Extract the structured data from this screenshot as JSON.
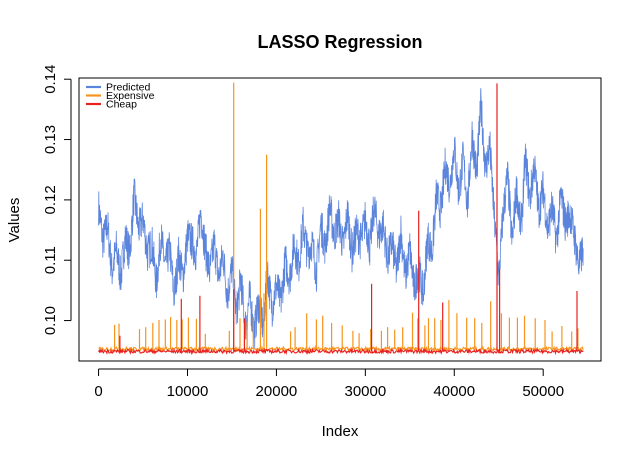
{
  "chart_data": {
    "type": "line",
    "title": "LASSO Regression",
    "xlabel": "Index",
    "ylabel": "Values",
    "xlim": [
      -2200,
      56500
    ],
    "ylim": [
      0.0933,
      0.1402
    ],
    "x_ticks": [
      0,
      10000,
      20000,
      30000,
      40000,
      50000
    ],
    "y_ticks": [
      0.1,
      0.11,
      0.12,
      0.13,
      0.14
    ],
    "y_tick_labels": [
      "0.10",
      "0.11",
      "0.12",
      "0.13",
      "0.14"
    ],
    "grid": false,
    "legend_position": "top-left",
    "series": [
      {
        "name": "Predicted",
        "color": "#5b84dc",
        "x": [
          0,
          500,
          1000,
          1500,
          2000,
          2500,
          3000,
          3500,
          4000,
          4500,
          5000,
          5500,
          6000,
          6500,
          7000,
          7500,
          8000,
          8500,
          9000,
          9500,
          10000,
          10500,
          11000,
          11500,
          12000,
          12500,
          13000,
          13500,
          14000,
          14500,
          15000,
          15500,
          16000,
          16500,
          17000,
          17500,
          18000,
          18500,
          19000,
          19500,
          20000,
          20500,
          21000,
          21500,
          22000,
          22500,
          23000,
          23500,
          24000,
          24500,
          25000,
          25500,
          26000,
          26500,
          27000,
          27500,
          28000,
          28500,
          29000,
          29500,
          30000,
          30500,
          31000,
          31500,
          32000,
          32500,
          33000,
          33500,
          34000,
          34500,
          35000,
          35500,
          36000,
          36500,
          37000,
          37500,
          38000,
          38500,
          39000,
          39500,
          40000,
          40500,
          41000,
          41500,
          42000,
          42500,
          43000,
          43500,
          44000,
          44500,
          45000,
          45500,
          46000,
          46500,
          47000,
          47500,
          48000,
          48500,
          49000,
          49500,
          50000,
          50500,
          51000,
          51500,
          52000,
          52500,
          53000,
          53500,
          54000,
          54500
        ],
        "values": [
          0.119,
          0.113,
          0.116,
          0.108,
          0.112,
          0.107,
          0.114,
          0.111,
          0.121,
          0.115,
          0.117,
          0.111,
          0.113,
          0.106,
          0.114,
          0.109,
          0.112,
          0.104,
          0.111,
          0.107,
          0.114,
          0.113,
          0.111,
          0.118,
          0.112,
          0.108,
          0.113,
          0.107,
          0.111,
          0.104,
          0.109,
          0.101,
          0.107,
          0.099,
          0.104,
          0.098,
          0.103,
          0.099,
          0.108,
          0.102,
          0.106,
          0.103,
          0.11,
          0.107,
          0.113,
          0.109,
          0.116,
          0.111,
          0.113,
          0.108,
          0.116,
          0.112,
          0.119,
          0.114,
          0.117,
          0.112,
          0.118,
          0.111,
          0.115,
          0.113,
          0.117,
          0.112,
          0.119,
          0.114,
          0.116,
          0.11,
          0.113,
          0.108,
          0.115,
          0.107,
          0.112,
          0.105,
          0.109,
          0.104,
          0.114,
          0.111,
          0.121,
          0.118,
          0.126,
          0.122,
          0.129,
          0.121,
          0.127,
          0.119,
          0.131,
          0.124,
          0.136,
          0.125,
          0.129,
          0.117,
          0.107,
          0.118,
          0.124,
          0.113,
          0.122,
          0.115,
          0.127,
          0.12,
          0.126,
          0.118,
          0.122,
          0.115,
          0.119,
          0.113,
          0.121,
          0.116,
          0.118,
          0.114,
          0.109,
          0.112
        ]
      },
      {
        "name": "Expensive",
        "color": "#f7941d",
        "baseline": 0.0953,
        "spike_x": [
          1800,
          2300,
          4600,
          5300,
          6100,
          6800,
          7500,
          8100,
          8800,
          9400,
          10100,
          11000,
          12000,
          14700,
          15200,
          15900,
          16700,
          17400,
          18200,
          18600,
          18900,
          21600,
          22100,
          23400,
          24500,
          25200,
          26200,
          27400,
          28600,
          29300,
          30600,
          31800,
          32500,
          33300,
          34200,
          35300,
          35900,
          36700,
          37100,
          37800,
          38500,
          39400,
          40300,
          41400,
          42300,
          43100,
          44100,
          45300,
          46200,
          47100,
          47900,
          49100,
          50200,
          51000,
          52100,
          53200,
          53900
        ],
        "spike_values": [
          0.0993,
          0.0995,
          0.0986,
          0.0989,
          0.0996,
          0.1001,
          0.1002,
          0.1006,
          0.1001,
          0.1002,
          0.1005,
          0.1003,
          0.0978,
          0.0983,
          0.1394,
          0.1004,
          0.0998,
          0.1006,
          0.1185,
          0.1045,
          0.1275,
          0.0982,
          0.0989,
          0.1012,
          0.1002,
          0.1008,
          0.0996,
          0.0992,
          0.0983,
          0.0979,
          0.0986,
          0.0983,
          0.0989,
          0.0985,
          0.0989,
          0.1013,
          0.1004,
          0.0992,
          0.1004,
          0.1004,
          0.1001,
          0.1034,
          0.1012,
          0.1005,
          0.1004,
          0.0996,
          0.1032,
          0.1012,
          0.1005,
          0.1005,
          0.1008,
          0.1004,
          0.1001,
          0.0982,
          0.0991,
          0.0982,
          0.0987
        ]
      },
      {
        "name": "Cheap",
        "color": "#e8201f",
        "baseline": 0.0949,
        "spike_x": [
          2400,
          9300,
          11400,
          15200,
          16400,
          30700,
          36000,
          38700,
          44800,
          45100,
          53800
        ],
        "spike_values": [
          0.0975,
          0.1036,
          0.1041,
          0.1052,
          0.1003,
          0.1061,
          0.1182,
          0.103,
          0.1393,
          0.1086,
          0.1049
        ]
      }
    ]
  }
}
